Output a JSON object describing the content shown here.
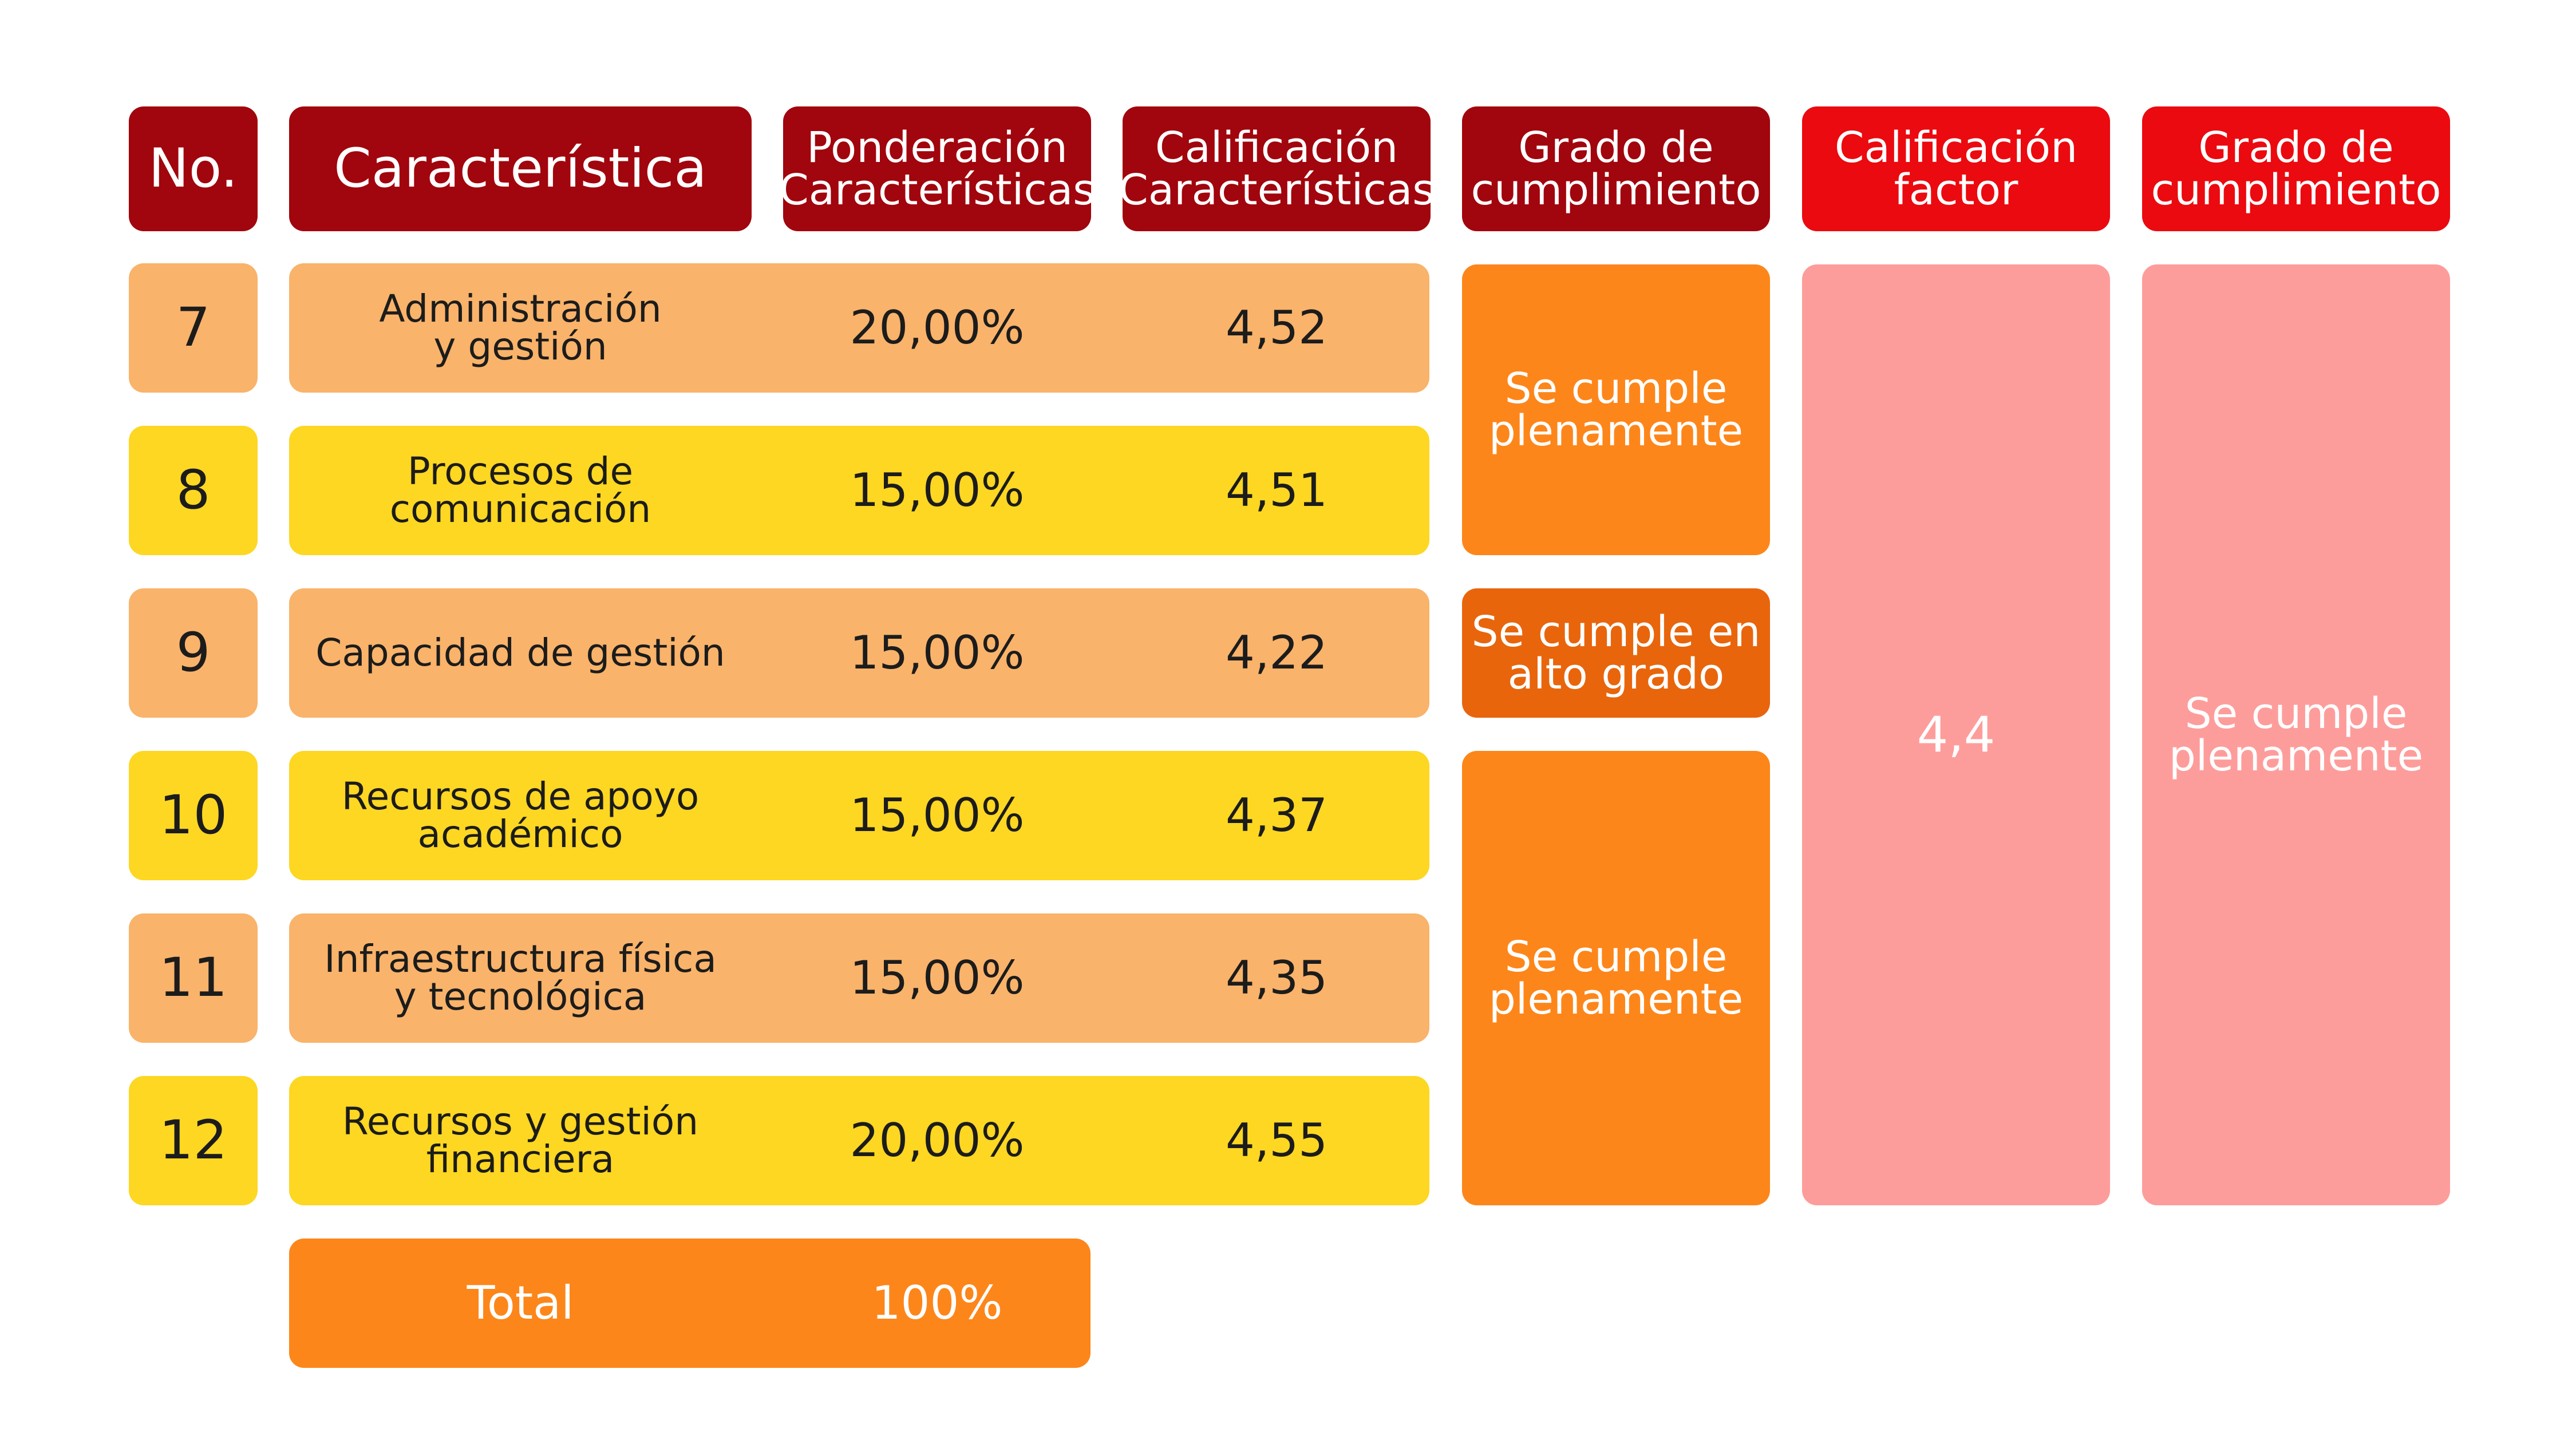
{
  "headers": {
    "no": "No.",
    "caracteristica": "Característica",
    "ponderacion": "Ponderación\nCaracterísticas",
    "calificacion": "Calificación\nCaracterísticas",
    "grado": "Grado de\ncumplimiento",
    "calificacion_factor": "Calificación\nfactor",
    "grado_factor": "Grado de\ncumplimiento"
  },
  "rows": [
    {
      "no": "7",
      "name": "Administración\ny gestión",
      "ponderacion": "20,00%",
      "calificacion": "4,52"
    },
    {
      "no": "8",
      "name": "Procesos de\ncomunicación",
      "ponderacion": "15,00%",
      "calificacion": "4,51"
    },
    {
      "no": "9",
      "name": "Capacidad de gestión",
      "ponderacion": "15,00%",
      "calificacion": "4,22"
    },
    {
      "no": "10",
      "name": "Recursos de apoyo\nacadémico",
      "ponderacion": "15,00%",
      "calificacion": "4,37"
    },
    {
      "no": "11",
      "name": "Infraestructura física\ny tecnológica",
      "ponderacion": "15,00%",
      "calificacion": "4,35"
    },
    {
      "no": "12",
      "name": "Recursos y gestión\nfinanciera",
      "ponderacion": "20,00%",
      "calificacion": "4,55"
    }
  ],
  "grado_groups": [
    {
      "label": "Se cumple\nplenamente"
    },
    {
      "label": "Se cumple en\nalto grado"
    },
    {
      "label": "Se cumple\nplenamente"
    }
  ],
  "factor": {
    "calificacion": "4,4",
    "grado": "Se cumple\nplenamente"
  },
  "total": {
    "label": "Total",
    "value": "100%"
  },
  "colors": {
    "header_dark": "#a1050d",
    "header_red": "#eb0a0f",
    "row_peach": "#f9b36a",
    "row_yellow": "#fdd721",
    "grado_orange": "#fd861a",
    "grado_dark_orange": "#e8650c",
    "factor_pink": "#fd9d9b"
  }
}
